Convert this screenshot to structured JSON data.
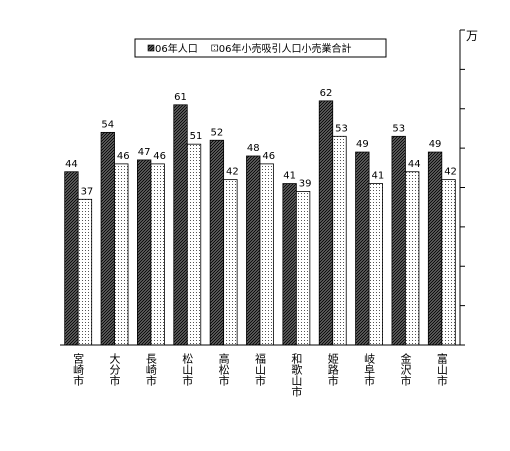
{
  "chart_data": {
    "type": "bar",
    "y_unit": "万",
    "categories": [
      "宮崎市",
      "大分市",
      "長崎市",
      "松山市",
      "高松市",
      "福山市",
      "和歌山市",
      "姫路市",
      "岐阜市",
      "金沢市",
      "富山市"
    ],
    "series": [
      {
        "name": "06年人口",
        "color": "#6a6a6a",
        "values": [
          44,
          54,
          47,
          61,
          52,
          48,
          41,
          62,
          49,
          53,
          49
        ]
      },
      {
        "name": "06年小売吸引人口小売業合計",
        "color": "#ffffff",
        "values": [
          37,
          46,
          46,
          51,
          42,
          46,
          39,
          53,
          41,
          44,
          42
        ]
      }
    ],
    "ylim": [
      0,
      80
    ],
    "yticks": [
      0,
      10,
      20,
      30,
      40,
      50,
      60,
      70,
      80
    ]
  }
}
